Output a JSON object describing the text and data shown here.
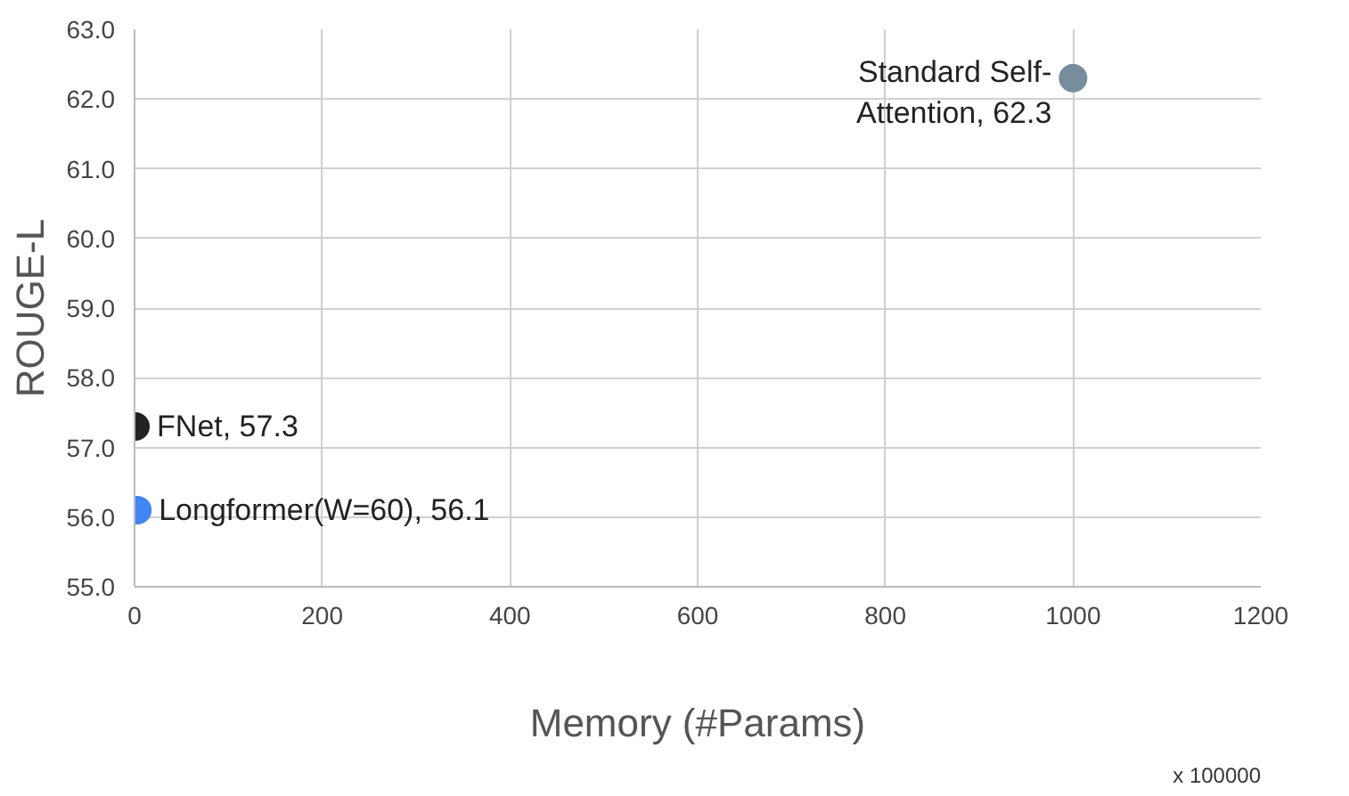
{
  "chart_data": {
    "type": "scatter",
    "xlabel": "Memory (#Params)",
    "ylabel": "ROUGE-L",
    "xlim": [
      0,
      1200
    ],
    "xticks": [
      0,
      200,
      400,
      600,
      800,
      1000,
      1200
    ],
    "ylim": [
      55,
      63
    ],
    "yticks": [
      {
        "value": 55,
        "label": "55.0"
      },
      {
        "value": 56,
        "label": "56.0"
      },
      {
        "value": 57,
        "label": "57.0"
      },
      {
        "value": 58,
        "label": "58.0"
      },
      {
        "value": 59,
        "label": "59.0"
      },
      {
        "value": 60,
        "label": "60.0"
      },
      {
        "value": 61,
        "label": "61.0"
      },
      {
        "value": 62,
        "label": "62.0"
      },
      {
        "value": 63,
        "label": "63.0"
      }
    ],
    "grid": true,
    "marker": "circle",
    "series": [
      {
        "color": "#222222",
        "x": [
          1
        ],
        "values": [
          57.3
        ],
        "value_labels": [
          "FNet, 57.3"
        ]
      },
      {
        "color": "#4285f4",
        "x": [
          3
        ],
        "values": [
          56.1
        ],
        "value_labels": [
          "Longformer(W=60), 56.1"
        ]
      },
      {
        "color": "#778d9c",
        "x": [
          1000
        ],
        "values": [
          62.3
        ],
        "value_labels": [
          "Standard Self-\nAttention, 62.3"
        ]
      }
    ],
    "annotations": [
      "x 100000"
    ]
  }
}
